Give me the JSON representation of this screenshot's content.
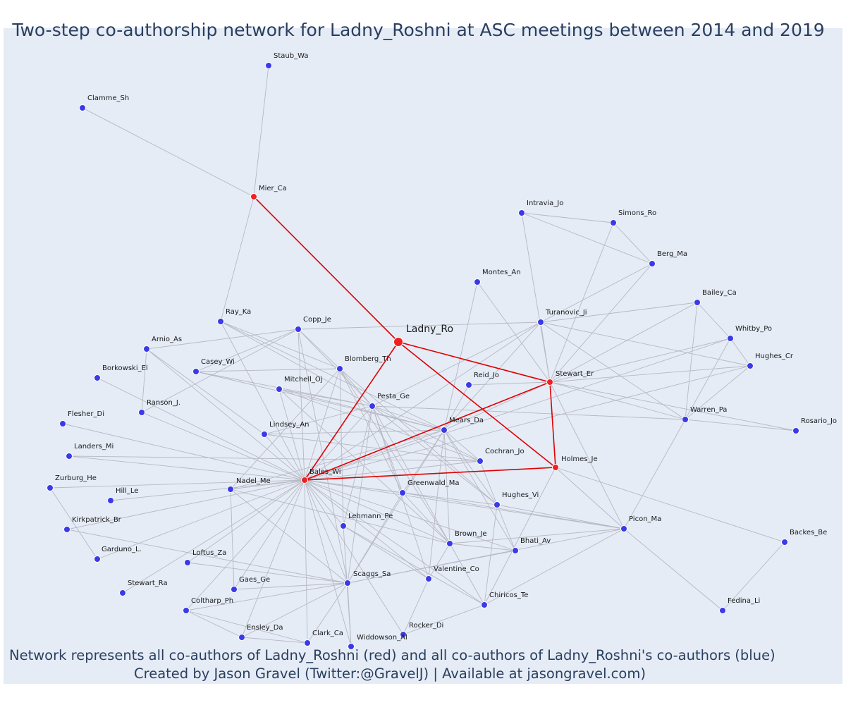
{
  "title": "Two-step co-authorship network for Ladny_Roshni at ASC meetings between 2014 and 2019",
  "footer": {
    "line1": "Network represents all co-authors of Ladny_Roshni (red) and all co-authors of Ladny_Roshni's co-authors (blue)",
    "line2": "Created by Jason Gravel (Twitter:@GravelJ) | Available at jasongravel.com)"
  },
  "colors": {
    "plot_background": "#e5ecf6",
    "red_node": "#f02020",
    "blue_node": "#3a3ae8",
    "red_edge": "#e00000",
    "grey_edge": "#b8b8c4",
    "text": "#2a3f5f"
  },
  "nodes": [
    {
      "id": "Ladny_Ro",
      "type": "center"
    },
    {
      "id": "Mier_Ca",
      "type": "coauthor"
    },
    {
      "id": "Bales_Wi",
      "type": "coauthor"
    },
    {
      "id": "Stewart_Er",
      "type": "coauthor"
    },
    {
      "id": "Holmes_Je",
      "type": "coauthor"
    },
    {
      "id": "Staub_Wa",
      "type": "second"
    },
    {
      "id": "Clamme_Sh",
      "type": "second"
    },
    {
      "id": "Ray_Ka",
      "type": "second"
    },
    {
      "id": "Intravia_Jo",
      "type": "second"
    },
    {
      "id": "Simons_Ro",
      "type": "second"
    },
    {
      "id": "Berg_Ma",
      "type": "second"
    },
    {
      "id": "Montes_An",
      "type": "second"
    },
    {
      "id": "Bailey_Ca",
      "type": "second"
    },
    {
      "id": "Turanovic_Ji",
      "type": "second"
    },
    {
      "id": "Whitby_Po",
      "type": "second"
    },
    {
      "id": "Hughes_Cr",
      "type": "second"
    },
    {
      "id": "Copp_Je",
      "type": "second"
    },
    {
      "id": "Arnio_As",
      "type": "second"
    },
    {
      "id": "Blomberg_Th",
      "type": "second"
    },
    {
      "id": "Casey_Wi",
      "type": "second"
    },
    {
      "id": "Borkowski_El",
      "type": "second"
    },
    {
      "id": "Mitchell_Oj",
      "type": "second"
    },
    {
      "id": "Reid_Jo",
      "type": "second"
    },
    {
      "id": "Pesta_Ge",
      "type": "second"
    },
    {
      "id": "Ranson_J.",
      "type": "second"
    },
    {
      "id": "Warren_Pa",
      "type": "second"
    },
    {
      "id": "Rosario_Jo",
      "type": "second"
    },
    {
      "id": "Flesher_Di",
      "type": "second"
    },
    {
      "id": "Mears_Da",
      "type": "second"
    },
    {
      "id": "Lindsey_An",
      "type": "second"
    },
    {
      "id": "Landers_Mi",
      "type": "second"
    },
    {
      "id": "Cochran_Jo",
      "type": "second"
    },
    {
      "id": "Zurburg_He",
      "type": "second"
    },
    {
      "id": "Nadel_Me",
      "type": "second"
    },
    {
      "id": "Hill_Le",
      "type": "second"
    },
    {
      "id": "Greenwald_Ma",
      "type": "second"
    },
    {
      "id": "Hughes_Vi",
      "type": "second"
    },
    {
      "id": "Kirkpatrick_Br",
      "type": "second"
    },
    {
      "id": "Lehmann_Pe",
      "type": "second"
    },
    {
      "id": "Picon_Ma",
      "type": "second"
    },
    {
      "id": "Backes_Be",
      "type": "second"
    },
    {
      "id": "Brown_Je",
      "type": "second"
    },
    {
      "id": "Bhati_Av",
      "type": "second"
    },
    {
      "id": "Garduno_L.",
      "type": "second"
    },
    {
      "id": "Loftus_Za",
      "type": "second"
    },
    {
      "id": "Scaggs_Sa",
      "type": "second"
    },
    {
      "id": "Valentine_Co",
      "type": "second"
    },
    {
      "id": "Stewart_Ra",
      "type": "second"
    },
    {
      "id": "Gaes_Ge",
      "type": "second"
    },
    {
      "id": "Coltharp_Ph",
      "type": "second"
    },
    {
      "id": "Chiricos_Te",
      "type": "second"
    },
    {
      "id": "Fedina_Li",
      "type": "second"
    },
    {
      "id": "Ensley_Da",
      "type": "second"
    },
    {
      "id": "Clark_Ca",
      "type": "second"
    },
    {
      "id": "Rocker_Di",
      "type": "second"
    },
    {
      "id": "Widdowson_Al",
      "type": "second"
    }
  ],
  "red_edges": [
    [
      "Ladny_Ro",
      "Mier_Ca"
    ],
    [
      "Ladny_Ro",
      "Bales_Wi"
    ],
    [
      "Ladny_Ro",
      "Stewart_Er"
    ],
    [
      "Ladny_Ro",
      "Holmes_Je"
    ],
    [
      "Bales_Wi",
      "Stewart_Er"
    ],
    [
      "Bales_Wi",
      "Holmes_Je"
    ],
    [
      "Stewart_Er",
      "Holmes_Je"
    ]
  ],
  "grey_edges": [
    [
      "Mier_Ca",
      "Staub_Wa"
    ],
    [
      "Mier_Ca",
      "Clamme_Sh"
    ],
    [
      "Mier_Ca",
      "Ray_Ka"
    ],
    [
      "Intravia_Jo",
      "Simons_Ro"
    ],
    [
      "Intravia_Jo",
      "Berg_Ma"
    ],
    [
      "Intravia_Jo",
      "Stewart_Er"
    ],
    [
      "Simons_Ro",
      "Berg_Ma"
    ],
    [
      "Simons_Ro",
      "Stewart_Er"
    ],
    [
      "Berg_Ma",
      "Stewart_Er"
    ],
    [
      "Berg_Ma",
      "Turanovic_Ji"
    ],
    [
      "Montes_An",
      "Stewart_Er"
    ],
    [
      "Montes_An",
      "Mears_Da"
    ],
    [
      "Turanovic_Ji",
      "Stewart_Er"
    ],
    [
      "Turanovic_Ji",
      "Bailey_Ca"
    ],
    [
      "Turanovic_Ji",
      "Hughes_Cr"
    ],
    [
      "Turanovic_Ji",
      "Warren_Pa"
    ],
    [
      "Turanovic_Ji",
      "Copp_Je"
    ],
    [
      "Turanovic_Ji",
      "Bales_Wi"
    ],
    [
      "Turanovic_Ji",
      "Pesta_Ge"
    ],
    [
      "Turanovic_Ji",
      "Mears_Da"
    ],
    [
      "Bailey_Ca",
      "Whitby_Po"
    ],
    [
      "Bailey_Ca",
      "Warren_Pa"
    ],
    [
      "Bailey_Ca",
      "Stewart_Er"
    ],
    [
      "Whitby_Po",
      "Hughes_Cr"
    ],
    [
      "Whitby_Po",
      "Stewart_Er"
    ],
    [
      "Whitby_Po",
      "Warren_Pa"
    ],
    [
      "Whitby_Po",
      "Bales_Wi"
    ],
    [
      "Hughes_Cr",
      "Stewart_Er"
    ],
    [
      "Hughes_Cr",
      "Warren_Pa"
    ],
    [
      "Stewart_Er",
      "Warren_Pa"
    ],
    [
      "Stewart_Er",
      "Picon_Ma"
    ],
    [
      "Stewart_Er",
      "Mears_Da"
    ],
    [
      "Stewart_Er",
      "Reid_Jo"
    ],
    [
      "Stewart_Er",
      "Rosario_Jo"
    ],
    [
      "Warren_Pa",
      "Rosario_Jo"
    ],
    [
      "Warren_Pa",
      "Picon_Ma"
    ],
    [
      "Warren_Pa",
      "Pesta_Ge"
    ],
    [
      "Holmes_Je",
      "Backes_Be"
    ],
    [
      "Holmes_Je",
      "Picon_Ma"
    ],
    [
      "Holmes_Je",
      "Chiricos_Te"
    ],
    [
      "Backes_Be",
      "Fedina_Li"
    ],
    [
      "Picon_Ma",
      "Fedina_Li"
    ],
    [
      "Picon_Ma",
      "Chiricos_Te"
    ],
    [
      "Picon_Ma",
      "Brown_Je"
    ],
    [
      "Picon_Ma",
      "Scaggs_Sa"
    ],
    [
      "Picon_Ma",
      "Bales_Wi"
    ],
    [
      "Picon_Ma",
      "Hughes_Vi"
    ],
    [
      "Ray_Ka",
      "Blomberg_Th"
    ],
    [
      "Ray_Ka",
      "Pesta_Ge"
    ],
    [
      "Ray_Ka",
      "Bales_Wi"
    ],
    [
      "Ray_Ka",
      "Mears_Da"
    ],
    [
      "Copp_Je",
      "Arnio_As"
    ],
    [
      "Copp_Je",
      "Blomberg_Th"
    ],
    [
      "Copp_Je",
      "Casey_Wi"
    ],
    [
      "Copp_Je",
      "Ranson_J."
    ],
    [
      "Copp_Je",
      "Bales_Wi"
    ],
    [
      "Copp_Je",
      "Pesta_Ge"
    ],
    [
      "Copp_Je",
      "Scaggs_Sa"
    ],
    [
      "Arnio_As",
      "Ranson_J."
    ],
    [
      "Arnio_As",
      "Bales_Wi"
    ],
    [
      "Arnio_As",
      "Lindsey_An"
    ],
    [
      "Borkowski_El",
      "Bales_Wi"
    ],
    [
      "Flesher_Di",
      "Bales_Wi"
    ],
    [
      "Landers_Mi",
      "Bales_Wi"
    ],
    [
      "Landers_Mi",
      "Cochran_Jo"
    ],
    [
      "Zurburg_He",
      "Bales_Wi"
    ],
    [
      "Zurburg_He",
      "Garduno_L."
    ],
    [
      "Hill_Le",
      "Bales_Wi"
    ],
    [
      "Kirkpatrick_Br",
      "Bales_Wi"
    ],
    [
      "Garduno_L.",
      "Bales_Wi"
    ],
    [
      "Ranson_J.",
      "Bales_Wi"
    ],
    [
      "Stewart_Ra",
      "Bales_Wi"
    ],
    [
      "Loftus_Za",
      "Scaggs_Sa"
    ],
    [
      "Loftus_Za",
      "Bales_Wi"
    ],
    [
      "Blomberg_Th",
      "Casey_Wi"
    ],
    [
      "Blomberg_Th",
      "Bales_Wi"
    ],
    [
      "Blomberg_Th",
      "Pesta_Ge"
    ],
    [
      "Blomberg_Th",
      "Lehmann_Pe"
    ],
    [
      "Blomberg_Th",
      "Brown_Je"
    ],
    [
      "Blomberg_Th",
      "Greenwald_Ma"
    ],
    [
      "Blomberg_Th",
      "Hughes_Vi"
    ],
    [
      "Blomberg_Th",
      "Nadel_Me"
    ],
    [
      "Casey_Wi",
      "Pesta_Ge"
    ],
    [
      "Casey_Wi",
      "Mears_Da"
    ],
    [
      "Mitchell_Oj",
      "Pesta_Ge"
    ],
    [
      "Mitchell_Oj",
      "Mears_Da"
    ],
    [
      "Mitchell_Oj",
      "Bales_Wi"
    ],
    [
      "Mitchell_Oj",
      "Cochran_Jo"
    ],
    [
      "Mitchell_Oj",
      "Brown_Je"
    ],
    [
      "Reid_Jo",
      "Mears_Da"
    ],
    [
      "Pesta_Ge",
      "Mears_Da"
    ],
    [
      "Pesta_Ge",
      "Bales_Wi"
    ],
    [
      "Pesta_Ge",
      "Lindsey_An"
    ],
    [
      "Pesta_Ge",
      "Cochran_Jo"
    ],
    [
      "Pesta_Ge",
      "Greenwald_Ma"
    ],
    [
      "Pesta_Ge",
      "Hughes_Vi"
    ],
    [
      "Pesta_Ge",
      "Brown_Je"
    ],
    [
      "Pesta_Ge",
      "Scaggs_Sa"
    ],
    [
      "Pesta_Ge",
      "Valentine_Co"
    ],
    [
      "Pesta_Ge",
      "Lehmann_Pe"
    ],
    [
      "Mears_Da",
      "Lindsey_An"
    ],
    [
      "Mears_Da",
      "Cochran_Jo"
    ],
    [
      "Mears_Da",
      "Greenwald_Ma"
    ],
    [
      "Mears_Da",
      "Hughes_Vi"
    ],
    [
      "Mears_Da",
      "Brown_Je"
    ],
    [
      "Mears_Da",
      "Bhati_Av"
    ],
    [
      "Mears_Da",
      "Valentine_Co"
    ],
    [
      "Mears_Da",
      "Bales_Wi"
    ],
    [
      "Mears_Da",
      "Scaggs_Sa"
    ],
    [
      "Mears_Da",
      "Nadel_Me"
    ],
    [
      "Lindsey_An",
      "Bales_Wi"
    ],
    [
      "Lindsey_An",
      "Cochran_Jo"
    ],
    [
      "Cochran_Jo",
      "Bales_Wi"
    ],
    [
      "Cochran_Jo",
      "Hughes_Vi"
    ],
    [
      "Nadel_Me",
      "Bales_Wi"
    ],
    [
      "Nadel_Me",
      "Gaes_Ge"
    ],
    [
      "Nadel_Me",
      "Scaggs_Sa"
    ],
    [
      "Nadel_Me",
      "Brown_Je"
    ],
    [
      "Greenwald_Ma",
      "Bales_Wi"
    ],
    [
      "Greenwald_Ma",
      "Brown_Je"
    ],
    [
      "Greenwald_Ma",
      "Picon_Ma"
    ],
    [
      "Greenwald_Ma",
      "Scaggs_Sa"
    ],
    [
      "Hughes_Vi",
      "Bales_Wi"
    ],
    [
      "Hughes_Vi",
      "Bhati_Av"
    ],
    [
      "Hughes_Vi",
      "Chiricos_Te"
    ],
    [
      "Lehmann_Pe",
      "Bales_Wi"
    ],
    [
      "Lehmann_Pe",
      "Valentine_Co"
    ],
    [
      "Lehmann_Pe",
      "Chiricos_Te"
    ],
    [
      "Lehmann_Pe",
      "Widdowson_Al"
    ],
    [
      "Brown_Je",
      "Bales_Wi"
    ],
    [
      "Brown_Je",
      "Bhati_Av"
    ],
    [
      "Brown_Je",
      "Valentine_Co"
    ],
    [
      "Brown_Je",
      "Chiricos_Te"
    ],
    [
      "Bhati_Av",
      "Scaggs_Sa"
    ],
    [
      "Bhati_Av",
      "Bales_Wi"
    ],
    [
      "Scaggs_Sa",
      "Bales_Wi"
    ],
    [
      "Scaggs_Sa",
      "Gaes_Ge"
    ],
    [
      "Scaggs_Sa",
      "Coltharp_Ph"
    ],
    [
      "Scaggs_Sa",
      "Ensley_Da"
    ],
    [
      "Scaggs_Sa",
      "Clark_Ca"
    ],
    [
      "Scaggs_Sa",
      "Widdowson_Al"
    ],
    [
      "Valentine_Co",
      "Bales_Wi"
    ],
    [
      "Valentine_Co",
      "Rocker_Di"
    ],
    [
      "Chiricos_Te",
      "Bales_Wi"
    ],
    [
      "Chiricos_Te",
      "Rocker_Di"
    ],
    [
      "Gaes_Ge",
      "Bales_Wi"
    ],
    [
      "Coltharp_Ph",
      "Bales_Wi"
    ],
    [
      "Coltharp_Ph",
      "Ensley_Da"
    ],
    [
      "Coltharp_Ph",
      "Clark_Ca"
    ],
    [
      "Ensley_Da",
      "Bales_Wi"
    ],
    [
      "Ensley_Da",
      "Clark_Ca"
    ],
    [
      "Clark_Ca",
      "Bales_Wi"
    ],
    [
      "Widdowson_Al",
      "Bales_Wi"
    ],
    [
      "Rocker_Di",
      "Bales_Wi"
    ],
    [
      "Kirkpatrick_Br",
      "Scaggs_Sa"
    ],
    [
      "Bales_Wi",
      "Hughes_Cr"
    ]
  ]
}
